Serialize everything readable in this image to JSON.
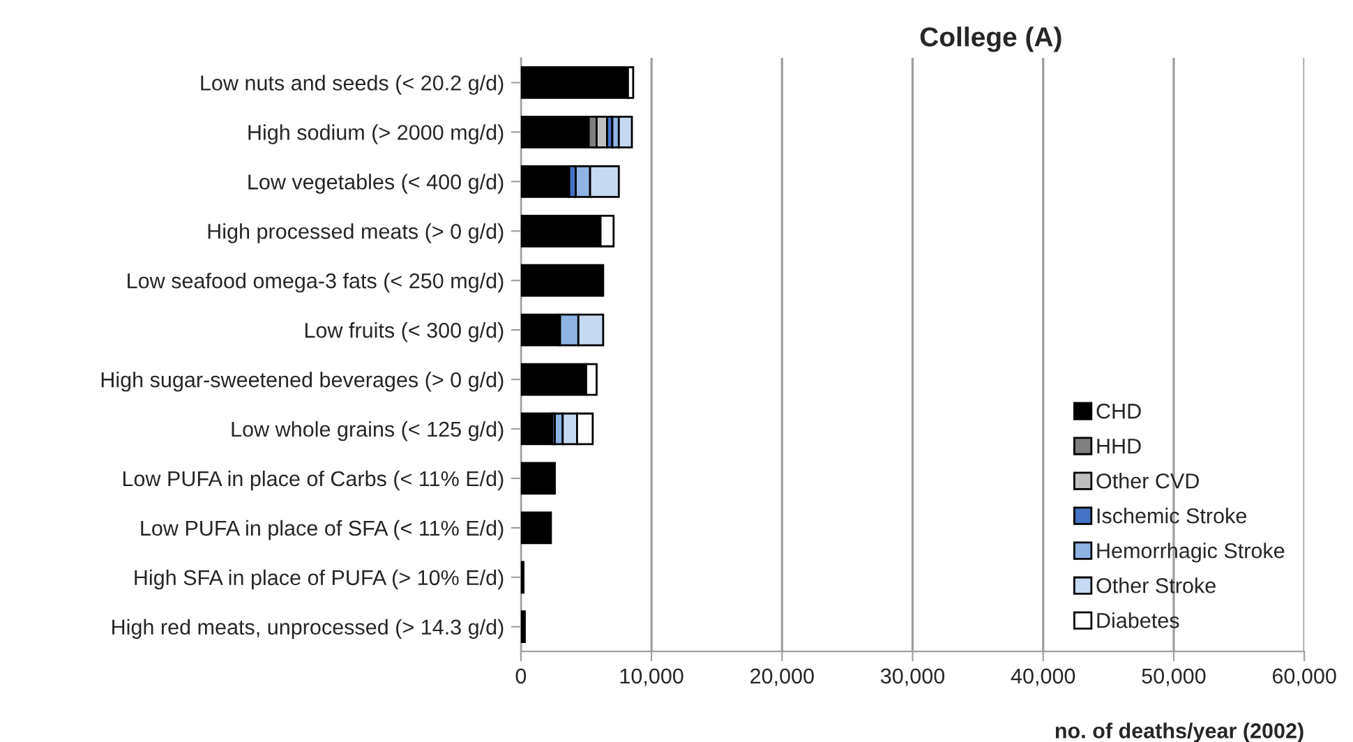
{
  "chart_data": {
    "type": "bar",
    "orientation": "horizontal",
    "stacked": true,
    "title": "College (A)",
    "xlabel": "no. of deaths/year (2002)",
    "categories": [
      "Low nuts and seeds (< 20.2 g/d)",
      "High sodium (> 2000 mg/d)",
      "Low vegetables (< 400 g/d)",
      "High processed meats (> 0 g/d)",
      "Low seafood omega-3 fats (< 250 mg/d)",
      "Low fruits (< 300 g/d)",
      "High sugar-sweetened beverages (> 0 g/d)",
      "Low whole grains (< 125 g/d)",
      "Low PUFA in place of Carbs (< 11% E/d)",
      "Low PUFA in place of SFA (< 11% E/d)",
      "High SFA in place of PUFA (> 10% E/d)",
      "High red meats, unprocessed (> 14.3 g/d)"
    ],
    "series": [
      {
        "name": "CHD",
        "color": "#000000",
        "values": [
          8200,
          5200,
          3700,
          6100,
          6300,
          3000,
          5000,
          2400,
          2600,
          2300,
          200,
          300
        ]
      },
      {
        "name": "HHD",
        "color": "#808080",
        "values": [
          null,
          600,
          null,
          null,
          null,
          null,
          null,
          null,
          null,
          null,
          null,
          null
        ]
      },
      {
        "name": "Other CVD",
        "color": "#c0c0c0",
        "values": [
          null,
          800,
          null,
          null,
          null,
          null,
          null,
          null,
          null,
          null,
          null,
          null
        ]
      },
      {
        "name": "Ischemic Stroke",
        "color": "#4472c4",
        "values": [
          null,
          400,
          500,
          null,
          null,
          null,
          null,
          200,
          null,
          null,
          null,
          null
        ]
      },
      {
        "name": "Hemorrhagic Stroke",
        "color": "#8eb4e3",
        "values": [
          null,
          500,
          1100,
          null,
          null,
          1400,
          null,
          600,
          null,
          null,
          null,
          null
        ]
      },
      {
        "name": "Other Stroke",
        "color": "#c6d9f1",
        "values": [
          null,
          1000,
          2200,
          null,
          null,
          1900,
          null,
          1100,
          null,
          null,
          null,
          null
        ]
      },
      {
        "name": "Diabetes",
        "color": "#ffffff",
        "values": [
          400,
          null,
          null,
          1000,
          null,
          null,
          800,
          1200,
          null,
          null,
          null,
          null
        ]
      }
    ],
    "xlim": [
      0,
      60000
    ],
    "xticks": [
      0,
      {
        "value": 10000,
        "label": "10,000"
      },
      {
        "value": 20000,
        "label": "20,000"
      },
      {
        "value": 30000,
        "label": "30,000"
      },
      {
        "value": 40000,
        "label": "40,000"
      },
      {
        "value": 50000,
        "label": "50,000"
      },
      {
        "value": 60000,
        "label": "60,000"
      }
    ],
    "grid": "x",
    "legend": "bottom right"
  }
}
